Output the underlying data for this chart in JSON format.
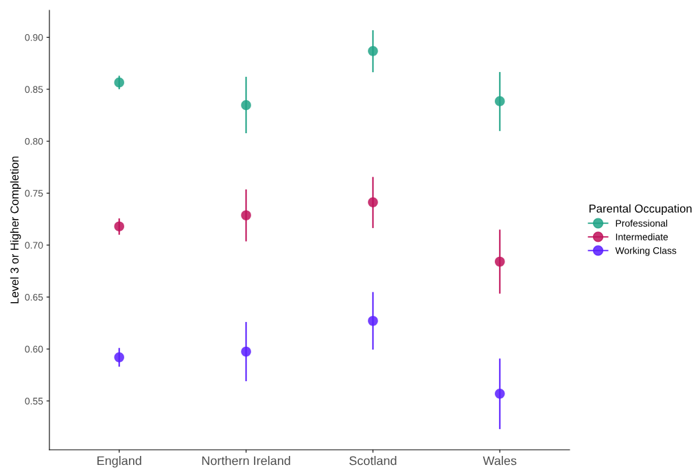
{
  "chart_data": {
    "type": "scatter",
    "ylabel": "Level 3 or Higher Completion",
    "legend_title": "Parental Occupation",
    "categories": [
      "England",
      "Northern Ireland",
      "Scotland",
      "Wales"
    ],
    "series": [
      {
        "name": "Professional",
        "color": "#20a386",
        "values": [
          0.8565,
          0.8347,
          0.8868,
          0.8385
        ],
        "errors": [
          [
            0.85,
            0.863
          ],
          [
            0.8077,
            0.862
          ],
          [
            0.8664,
            0.9068
          ],
          [
            0.8098,
            0.8666
          ]
        ]
      },
      {
        "name": "Intermediate",
        "color": "#c0125a",
        "values": [
          0.718,
          0.7287,
          0.7412,
          0.6841
        ],
        "errors": [
          [
            0.71,
            0.7257
          ],
          [
            0.7036,
            0.7536
          ],
          [
            0.7164,
            0.7656
          ],
          [
            0.6533,
            0.7149
          ]
        ]
      },
      {
        "name": "Working Class",
        "color": "#5a1fff",
        "values": [
          0.592,
          0.5975,
          0.6271,
          0.557
        ],
        "errors": [
          [
            0.583,
            0.601
          ],
          [
            0.569,
            0.626
          ],
          [
            0.5994,
            0.6548
          ],
          [
            0.5229,
            0.5908
          ]
        ]
      }
    ],
    "ylim": [
      0.503,
      0.926
    ],
    "yticks": [
      {
        "value": 0.55,
        "label": "0.55"
      },
      {
        "value": 0.6,
        "label": "0.60"
      },
      {
        "value": 0.65,
        "label": "0.65"
      },
      {
        "value": 0.7,
        "label": "0.70"
      },
      {
        "value": 0.75,
        "label": "0.75"
      },
      {
        "value": 0.8,
        "label": "0.80"
      },
      {
        "value": 0.85,
        "label": "0.85"
      },
      {
        "value": 0.9,
        "label": "0.90"
      }
    ],
    "marker": "circle",
    "grid": false,
    "legend": "right"
  }
}
